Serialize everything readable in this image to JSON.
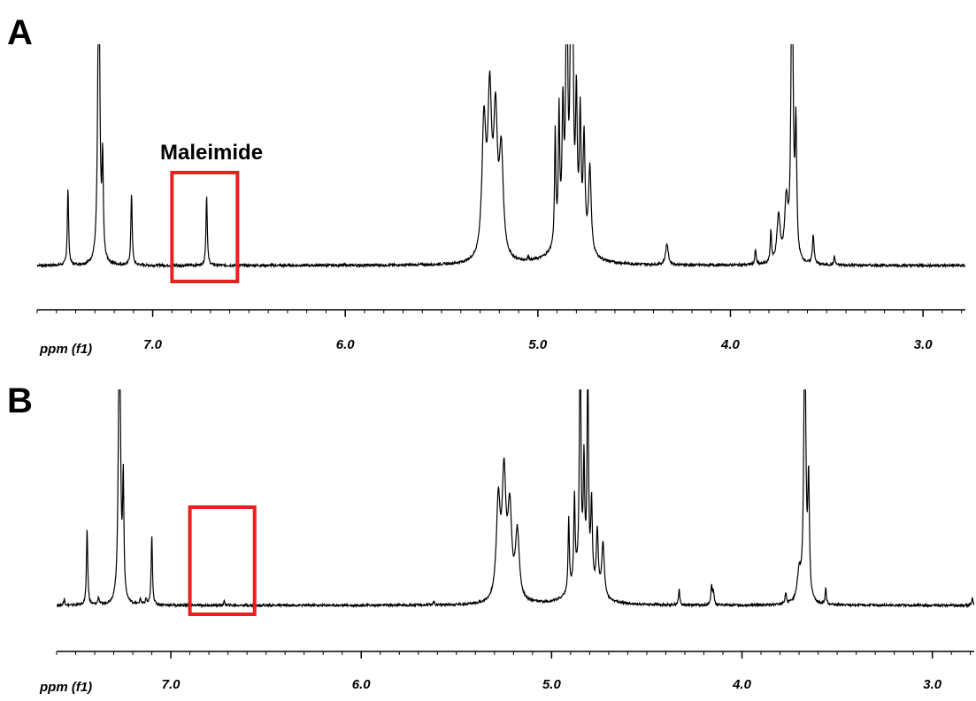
{
  "figure": {
    "annotation_color": "#e8201f",
    "trace_color": "#000000"
  },
  "chart_data": [
    {
      "type": "line",
      "panel": "A",
      "xlabel": "ppm (f1)",
      "x_reversed": true,
      "xlim": [
        7.6,
        2.78
      ],
      "xticks": [
        7.0,
        6.0,
        5.0,
        4.0,
        3.0
      ],
      "xtick_labels": [
        "7.0",
        "6.0",
        "5.0",
        "4.0",
        "3.0"
      ],
      "ylim": [
        0,
        1
      ],
      "annotation": {
        "label": "Maleimide",
        "x_range": [
          6.9,
          6.56
        ],
        "style": "box"
      },
      "peaks": [
        {
          "x": 7.44,
          "height": 0.36,
          "width": 0.004
        },
        {
          "x": 7.28,
          "height": 1.6,
          "width": 0.006
        },
        {
          "x": 7.26,
          "height": 0.45,
          "width": 0.004
        },
        {
          "x": 7.11,
          "height": 0.34,
          "width": 0.004
        },
        {
          "x": 6.72,
          "height": 0.33,
          "width": 0.004
        },
        {
          "x": 5.05,
          "height": 0.02,
          "width": 0.004
        },
        {
          "x": 5.28,
          "height": 0.62,
          "width": 0.012
        },
        {
          "x": 5.25,
          "height": 0.72,
          "width": 0.012
        },
        {
          "x": 5.22,
          "height": 0.62,
          "width": 0.012
        },
        {
          "x": 5.19,
          "height": 0.48,
          "width": 0.012
        },
        {
          "x": 4.91,
          "height": 0.52,
          "width": 0.004
        },
        {
          "x": 4.89,
          "height": 0.58,
          "width": 0.004
        },
        {
          "x": 4.87,
          "height": 0.55,
          "width": 0.005
        },
        {
          "x": 4.85,
          "height": 1.7,
          "width": 0.004
        },
        {
          "x": 4.83,
          "height": 0.82,
          "width": 0.004
        },
        {
          "x": 4.82,
          "height": 1.4,
          "width": 0.004
        },
        {
          "x": 4.8,
          "height": 0.62,
          "width": 0.005
        },
        {
          "x": 4.78,
          "height": 0.58,
          "width": 0.005
        },
        {
          "x": 4.76,
          "height": 0.5,
          "width": 0.006
        },
        {
          "x": 4.73,
          "height": 0.4,
          "width": 0.008
        },
        {
          "x": 4.84,
          "height": 0.25,
          "width": 0.05
        },
        {
          "x": 4.33,
          "height": 0.1,
          "width": 0.008
        },
        {
          "x": 3.87,
          "height": 0.07,
          "width": 0.004
        },
        {
          "x": 3.79,
          "height": 0.15,
          "width": 0.004
        },
        {
          "x": 3.75,
          "height": 0.22,
          "width": 0.01
        },
        {
          "x": 3.71,
          "height": 0.28,
          "width": 0.01
        },
        {
          "x": 3.68,
          "height": 1.6,
          "width": 0.006
        },
        {
          "x": 3.66,
          "height": 0.6,
          "width": 0.005
        },
        {
          "x": 3.57,
          "height": 0.14,
          "width": 0.005
        },
        {
          "x": 3.46,
          "height": 0.04,
          "width": 0.004
        }
      ]
    },
    {
      "type": "line",
      "panel": "B",
      "xlabel": "ppm (f1)",
      "x_reversed": true,
      "xlim": [
        7.6,
        2.78
      ],
      "xticks": [
        7.0,
        6.0,
        5.0,
        4.0,
        3.0
      ],
      "xtick_labels": [
        "7.0",
        "6.0",
        "5.0",
        "4.0",
        "3.0"
      ],
      "ylim": [
        0,
        1
      ],
      "annotation": {
        "label": "",
        "x_range": [
          6.9,
          6.56
        ],
        "style": "box"
      },
      "peaks": [
        {
          "x": 7.56,
          "height": 0.03,
          "width": 0.004
        },
        {
          "x": 7.44,
          "height": 0.39,
          "width": 0.004
        },
        {
          "x": 7.38,
          "height": 0.04,
          "width": 0.004
        },
        {
          "x": 7.27,
          "height": 1.7,
          "width": 0.006
        },
        {
          "x": 7.25,
          "height": 0.6,
          "width": 0.004
        },
        {
          "x": 7.16,
          "height": 0.03,
          "width": 0.004
        },
        {
          "x": 7.13,
          "height": 0.03,
          "width": 0.004
        },
        {
          "x": 7.1,
          "height": 0.36,
          "width": 0.004
        },
        {
          "x": 6.72,
          "height": 0.02,
          "width": 0.004
        },
        {
          "x": 5.62,
          "height": 0.02,
          "width": 0.004
        },
        {
          "x": 5.28,
          "height": 0.5,
          "width": 0.012
        },
        {
          "x": 5.25,
          "height": 0.62,
          "width": 0.012
        },
        {
          "x": 5.22,
          "height": 0.45,
          "width": 0.012
        },
        {
          "x": 5.18,
          "height": 0.35,
          "width": 0.012
        },
        {
          "x": 4.91,
          "height": 0.38,
          "width": 0.004
        },
        {
          "x": 4.88,
          "height": 0.45,
          "width": 0.004
        },
        {
          "x": 4.85,
          "height": 1.5,
          "width": 0.004
        },
        {
          "x": 4.83,
          "height": 0.55,
          "width": 0.004
        },
        {
          "x": 4.81,
          "height": 1.2,
          "width": 0.004
        },
        {
          "x": 4.79,
          "height": 0.42,
          "width": 0.005
        },
        {
          "x": 4.76,
          "height": 0.32,
          "width": 0.006
        },
        {
          "x": 4.73,
          "height": 0.28,
          "width": 0.008
        },
        {
          "x": 4.84,
          "height": 0.18,
          "width": 0.05
        },
        {
          "x": 4.33,
          "height": 0.08,
          "width": 0.004
        },
        {
          "x": 4.16,
          "height": 0.1,
          "width": 0.004
        },
        {
          "x": 4.15,
          "height": 0.07,
          "width": 0.004
        },
        {
          "x": 3.77,
          "height": 0.05,
          "width": 0.005
        },
        {
          "x": 3.67,
          "height": 1.55,
          "width": 0.006
        },
        {
          "x": 3.65,
          "height": 0.6,
          "width": 0.005
        },
        {
          "x": 3.7,
          "height": 0.15,
          "width": 0.012
        },
        {
          "x": 3.56,
          "height": 0.08,
          "width": 0.004
        },
        {
          "x": 2.79,
          "height": 0.04,
          "width": 0.004
        }
      ]
    }
  ]
}
